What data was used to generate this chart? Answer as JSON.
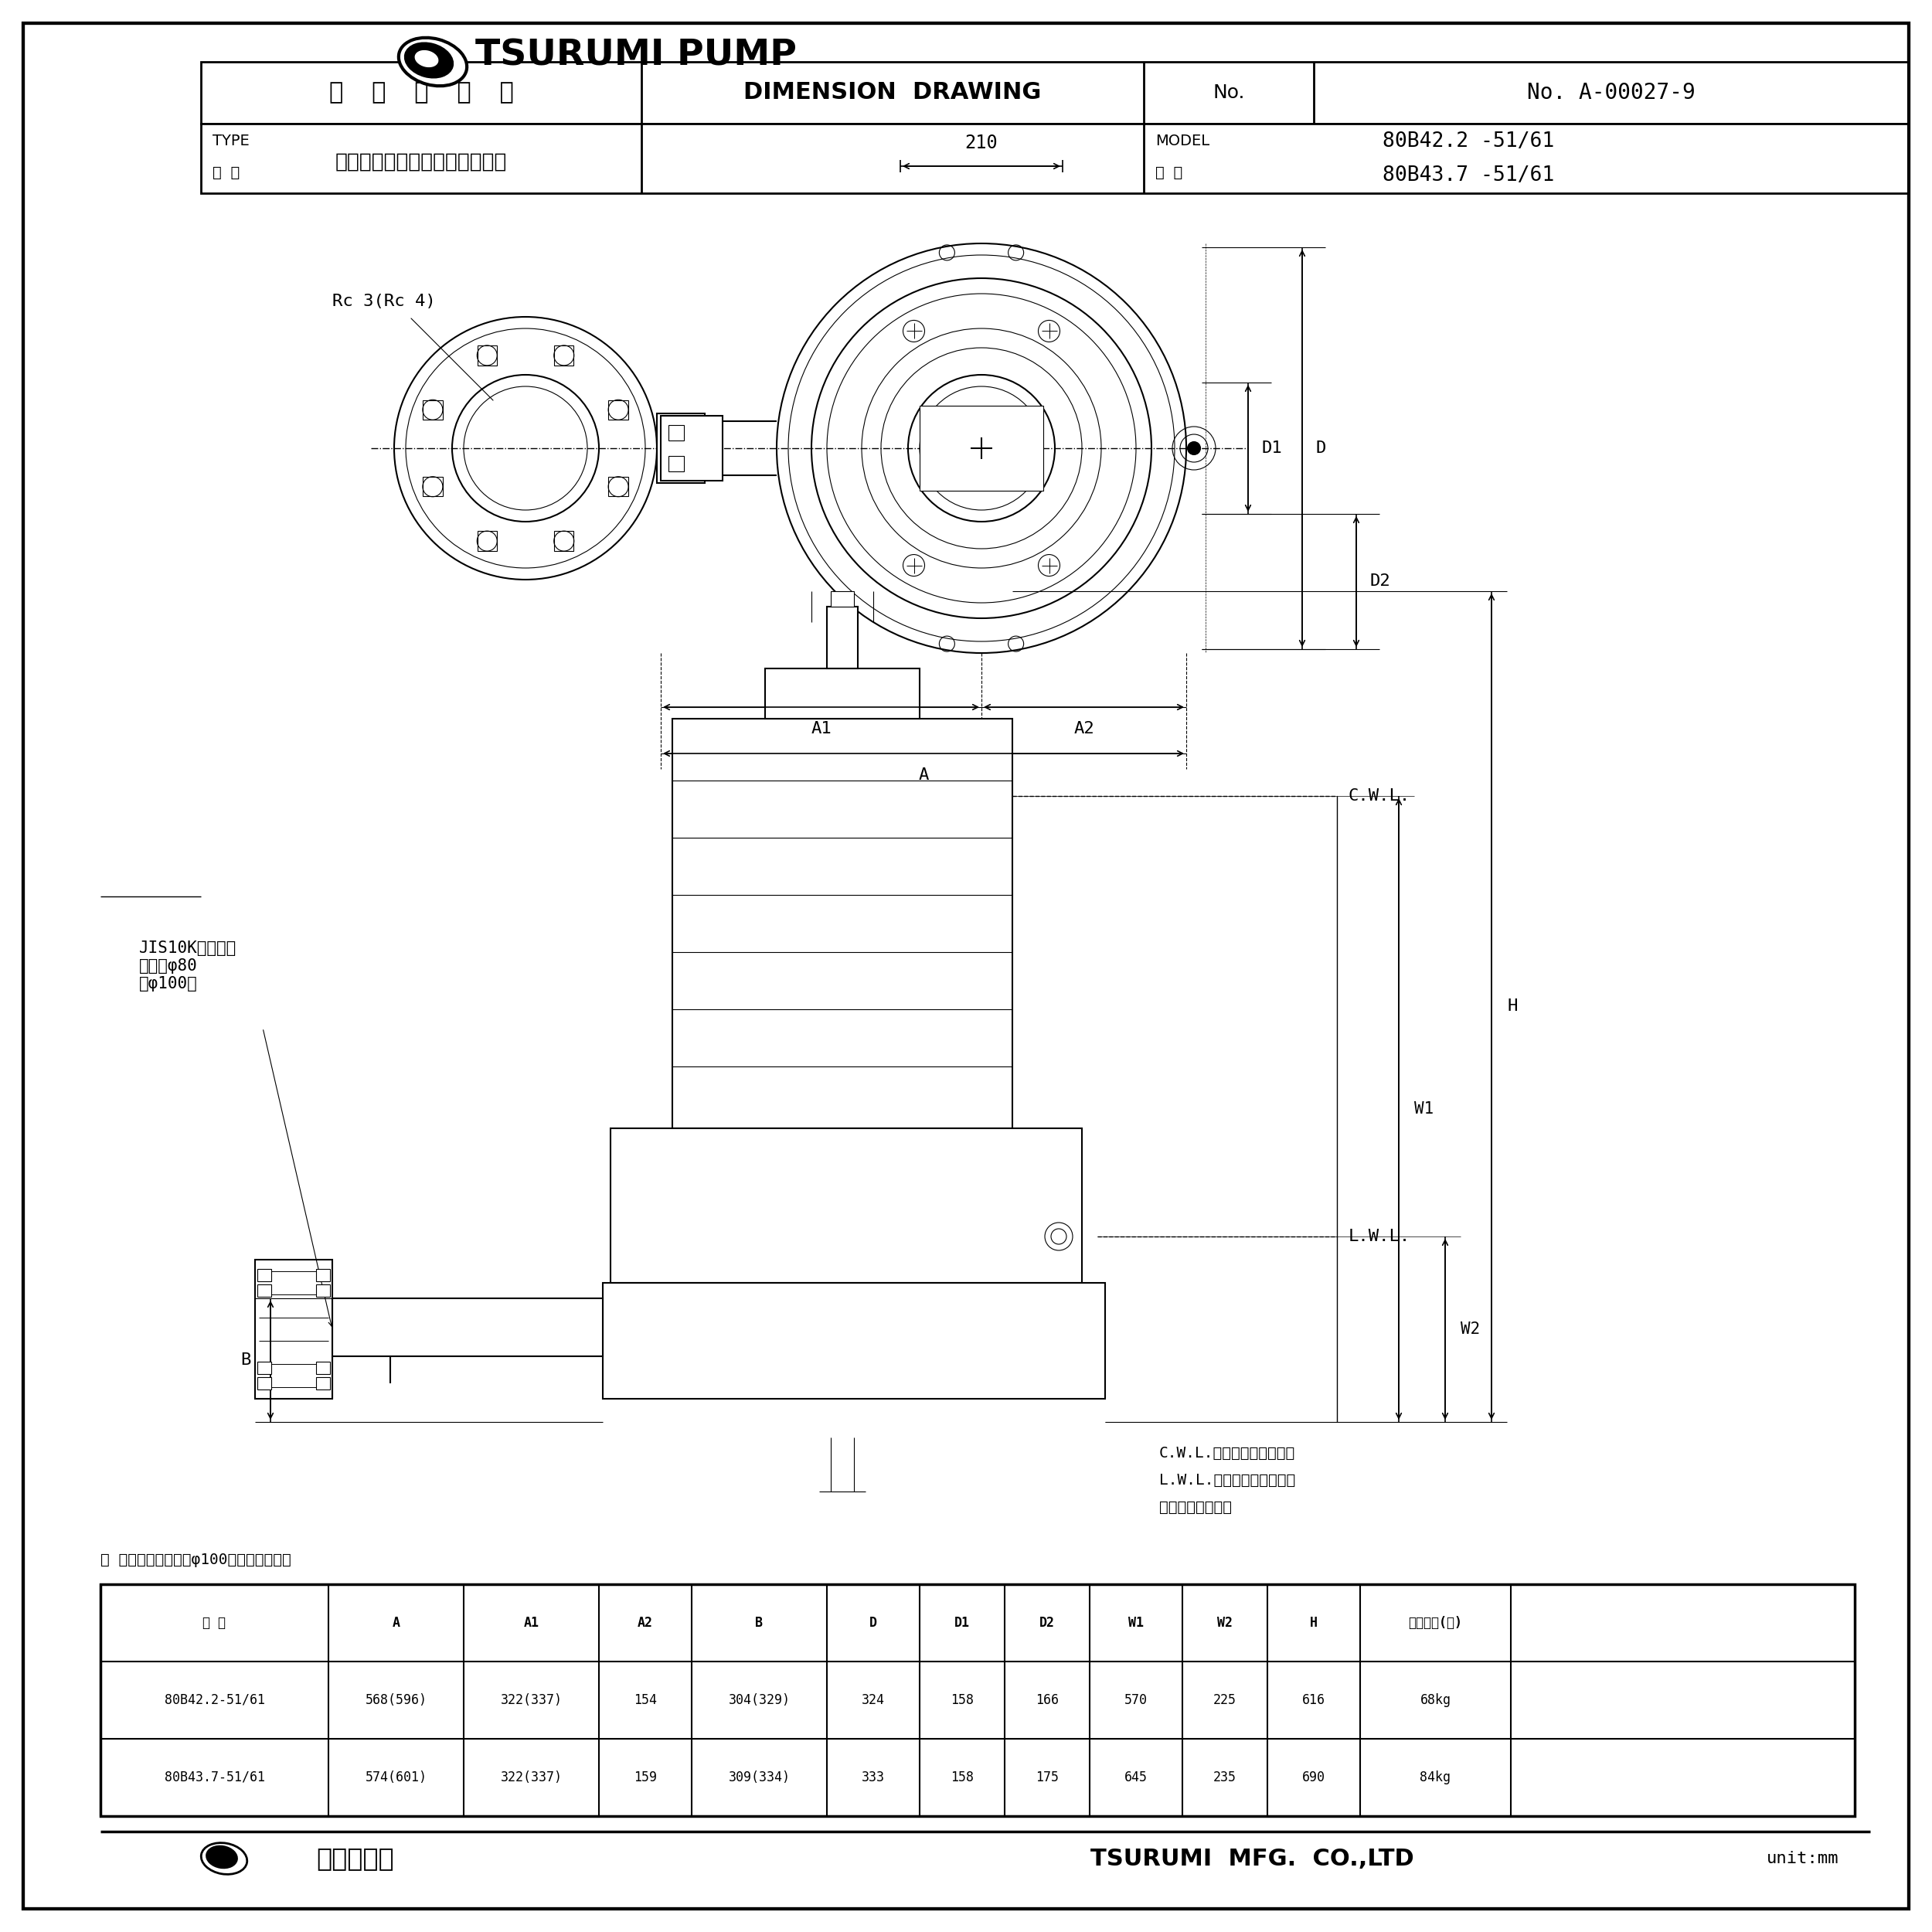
{
  "bg_color": "#ffffff",
  "line_color": "#000000",
  "title_header": "外 形 寸 法 図  DIMENSION  DRAWING",
  "no_label": "No.",
  "no_value": "A-00027-9",
  "type_label": "TYPE",
  "name_label": "名 称",
  "model_label": "MODEL",
  "type_value": "汚物用水中ノンクロッグポンプ",
  "model_value1": "80B42.2 -51/61",
  "model_value2": "80B43.7 -51/61",
  "shiki_label": "型 式",
  "annotation_rc": "Rc 3(Rc 4)",
  "annotation_210": "210",
  "dim_A": "A",
  "dim_A1": "A1",
  "dim_A2": "A2",
  "dim_D": "D",
  "dim_D1": "D1",
  "dim_D2": "D2",
  "dim_B": "B",
  "dim_H": "H",
  "dim_W1": "W1",
  "dim_W2": "W2",
  "cwl_label": "C.W.L.",
  "lwl_label": "L.W.L.",
  "jis_label": "JIS10Kフランジ\n呼び径φ80\n（φ100）",
  "cwl_note1": "C.W.L.：連続運転最低水位",
  "lwl_note2": "L.W.L.：運転可能最低水位",
  "cable_note": "※ケーブルは除く",
  "inner_note": "（ ）内寸法は、口径φ100の場合を示す。",
  "table_headers": [
    "型 式",
    "A",
    "A1",
    "A2",
    "B",
    "D",
    "D1",
    "D2",
    "W1",
    "W2",
    "H",
    "概算質量(※)"
  ],
  "table_row1": [
    "80B42.2-51/61",
    "568(596)",
    "322(337)",
    "154",
    "304(329)",
    "324",
    "158",
    "166",
    "570",
    "225",
    "616",
    "68kg"
  ],
  "table_row2": [
    "80B43.7-51/61",
    "574(601)",
    "322(337)",
    "159",
    "309(334)",
    "333",
    "158",
    "175",
    "645",
    "235",
    "690",
    "84kg"
  ],
  "footer_left": "鶴見製作所",
  "footer_right": "TSURUMI  MFG.  CO.,LTD",
  "unit_label": "unit:mm",
  "logo_text": "TSURUMI PUMP"
}
